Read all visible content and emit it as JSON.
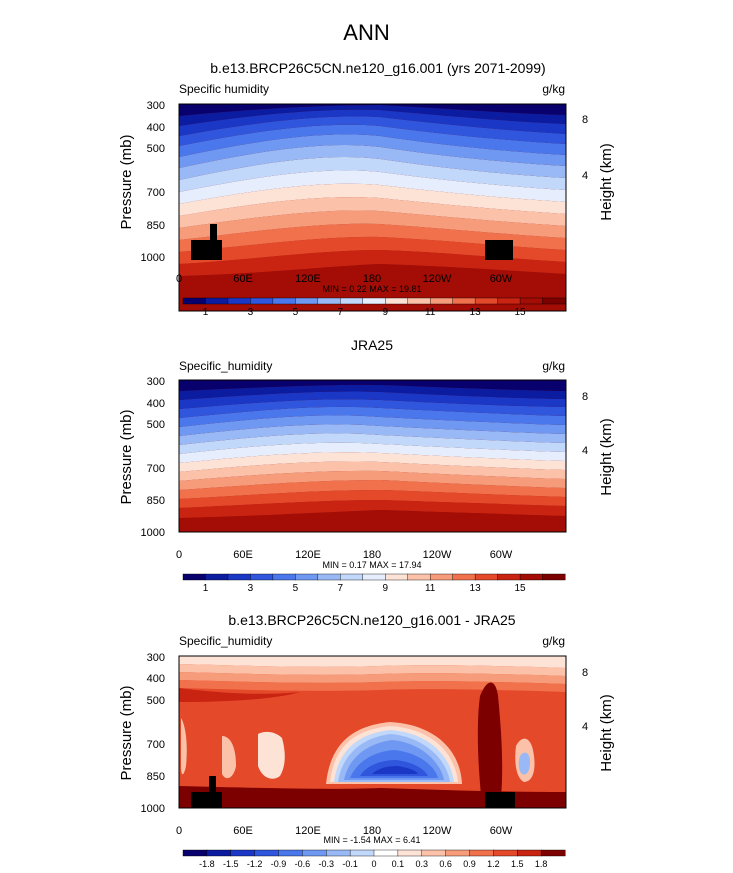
{
  "page_title": "ANN",
  "chart_data": [
    {
      "type": "heatmap",
      "title": "b.e13.BRCP26C5CN.ne120_g16.001 (yrs 2071-2099)",
      "left_label": "Specific humidity",
      "units": "g/kg",
      "ylabel": "Pressure (mb)",
      "ylabel_right": "Height (km)",
      "x_ticks": [
        "0",
        "60E",
        "120E",
        "180",
        "120W",
        "60W"
      ],
      "y_ticks": [
        "300",
        "400",
        "500",
        "700",
        "850",
        "1000"
      ],
      "y_right_ticks": [
        "8",
        "4"
      ],
      "stats": "MIN =  0.22  MAX =  19.81",
      "colorbar_labels": [
        "1",
        "3",
        "5",
        "7",
        "9",
        "11",
        "13",
        "15"
      ],
      "colorbar_colors": [
        "#08006d",
        "#0c1ca0",
        "#1b37c5",
        "#2f56dc",
        "#4a78ec",
        "#6f98f2",
        "#98b9f6",
        "#c1d8fa",
        "#e6eefd",
        "#fde2d6",
        "#fbc2a9",
        "#f79c7a",
        "#f1714d",
        "#e4492a",
        "#c92312",
        "#a30d05",
        "#7d0000"
      ],
      "value_range": [
        0.22,
        19.81
      ],
      "x_range": [
        0,
        360
      ],
      "y_range": [
        1000,
        300
      ]
    },
    {
      "type": "heatmap",
      "title": "JRA25",
      "left_label": "Specific_humidity",
      "units": "g/kg",
      "ylabel": "Pressure (mb)",
      "ylabel_right": "Height (km)",
      "x_ticks": [
        "0",
        "60E",
        "120E",
        "180",
        "120W",
        "60W"
      ],
      "y_ticks": [
        "300",
        "400",
        "500",
        "700",
        "850",
        "1000"
      ],
      "y_right_ticks": [
        "8",
        "4"
      ],
      "stats": "MIN =  0.17  MAX =  17.94",
      "colorbar_labels": [
        "1",
        "3",
        "5",
        "7",
        "9",
        "11",
        "13",
        "15"
      ],
      "colorbar_colors": [
        "#08006d",
        "#0c1ca0",
        "#1b37c5",
        "#2f56dc",
        "#4a78ec",
        "#6f98f2",
        "#98b9f6",
        "#c1d8fa",
        "#e6eefd",
        "#fde2d6",
        "#fbc2a9",
        "#f79c7a",
        "#f1714d",
        "#e4492a",
        "#c92312",
        "#a30d05",
        "#7d0000"
      ],
      "value_range": [
        0.17,
        17.94
      ],
      "x_range": [
        0,
        360
      ],
      "y_range": [
        1000,
        300
      ]
    },
    {
      "type": "heatmap",
      "title": "b.e13.BRCP26C5CN.ne120_g16.001 - JRA25",
      "left_label": "Specific_humidity",
      "units": "g/kg",
      "ylabel": "Pressure (mb)",
      "ylabel_right": "Height (km)",
      "x_ticks": [
        "0",
        "60E",
        "120E",
        "180",
        "120W",
        "60W"
      ],
      "y_ticks": [
        "300",
        "400",
        "500",
        "700",
        "850",
        "1000"
      ],
      "y_right_ticks": [
        "8",
        "4"
      ],
      "stats": "MIN = -1.54  MAX =  6.41",
      "colorbar_labels": [
        "-1.8",
        "-1.5",
        "-1.2",
        "-0.9",
        "-0.6",
        "-0.3",
        "-0.1",
        "0",
        "0.1",
        "0.3",
        "0.6",
        "0.9",
        "1.2",
        "1.5",
        "1.8"
      ],
      "colorbar_colors": [
        "#08006d",
        "#0c1ca0",
        "#1b37c5",
        "#2f56dc",
        "#4a78ec",
        "#6f98f2",
        "#98b9f6",
        "#c1d8fa",
        "#ffffff",
        "#fde2d6",
        "#fbc2a9",
        "#f79c7a",
        "#f1714d",
        "#e4492a",
        "#c92312",
        "#7d0000"
      ],
      "value_range": [
        -1.54,
        6.41
      ],
      "x_range": [
        0,
        360
      ],
      "y_range": [
        1000,
        300
      ]
    }
  ]
}
